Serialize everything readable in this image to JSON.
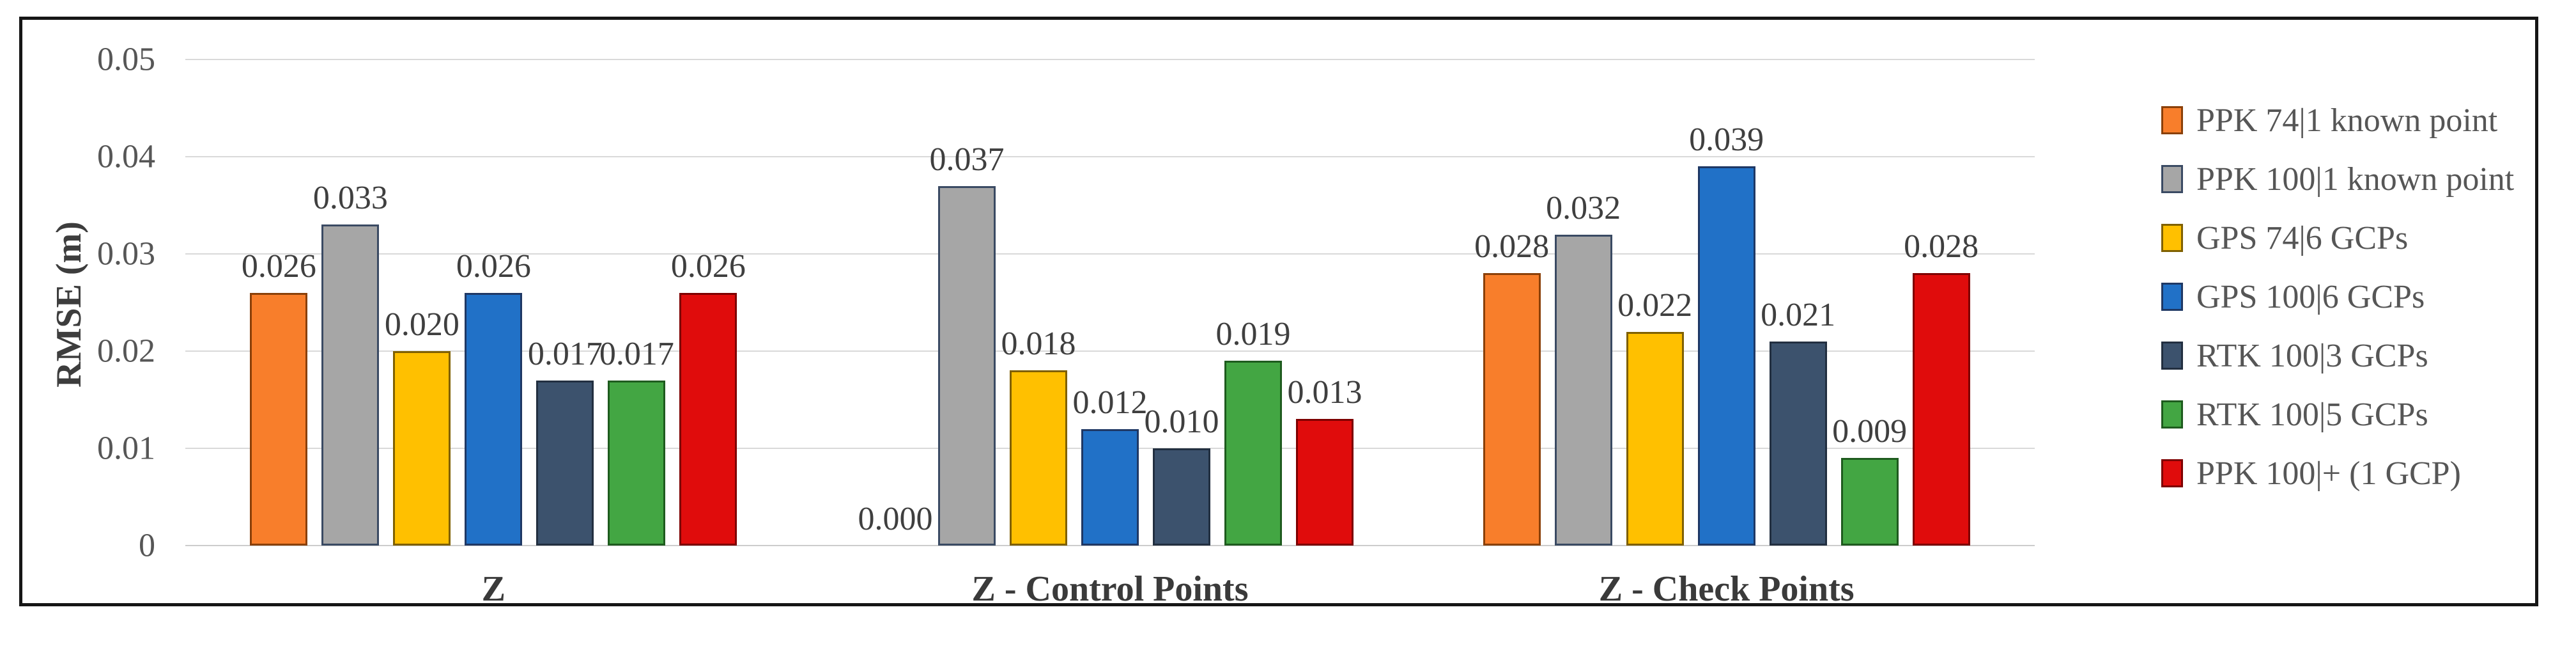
{
  "chart_data": {
    "type": "bar",
    "title": "",
    "ylabel": "RMSE (m)",
    "xlabel": "",
    "ylim": [
      0,
      0.05
    ],
    "ytick_labels": [
      "0.05",
      "0.04",
      "0.03",
      "0.02",
      "0.01",
      "0"
    ],
    "grid": true,
    "legend_position": "right",
    "grid_color": "#d9d9d9",
    "frame_color": "#161616",
    "categories": [
      "Z",
      "Z - Control Points",
      "Z - Check Points"
    ],
    "series": [
      {
        "name": "PPK 74|1 known point",
        "fill": "#f87e2b",
        "border": "#8a4009",
        "values": [
          0.026,
          0.0,
          0.028
        ]
      },
      {
        "name": "PPK 100|1 known point",
        "fill": "#a6a6a6",
        "border": "#3a4a63",
        "values": [
          0.033,
          0.037,
          0.032
        ]
      },
      {
        "name": "GPS 74|6 GCPs",
        "fill": "#ffc000",
        "border": "#7f6000",
        "values": [
          0.02,
          0.018,
          0.022
        ]
      },
      {
        "name": "GPS 100|6 GCPs",
        "fill": "#2171c7",
        "border": "#1f3864",
        "values": [
          0.026,
          0.012,
          0.039
        ]
      },
      {
        "name": "RTK 100|3 GCPs",
        "fill": "#3c526d",
        "border": "#222f40",
        "values": [
          0.017,
          0.01,
          0.021
        ]
      },
      {
        "name": "RTK 100|5 GCPs",
        "fill": "#43a643",
        "border": "#1e5b1e",
        "values": [
          0.017,
          0.019,
          0.009
        ]
      },
      {
        "name": "PPK 100|+ (1 GCP)",
        "fill": "#e00c0c",
        "border": "#7e0000",
        "values": [
          0.026,
          0.013,
          0.028
        ]
      }
    ],
    "value_label_decimals": 3
  }
}
